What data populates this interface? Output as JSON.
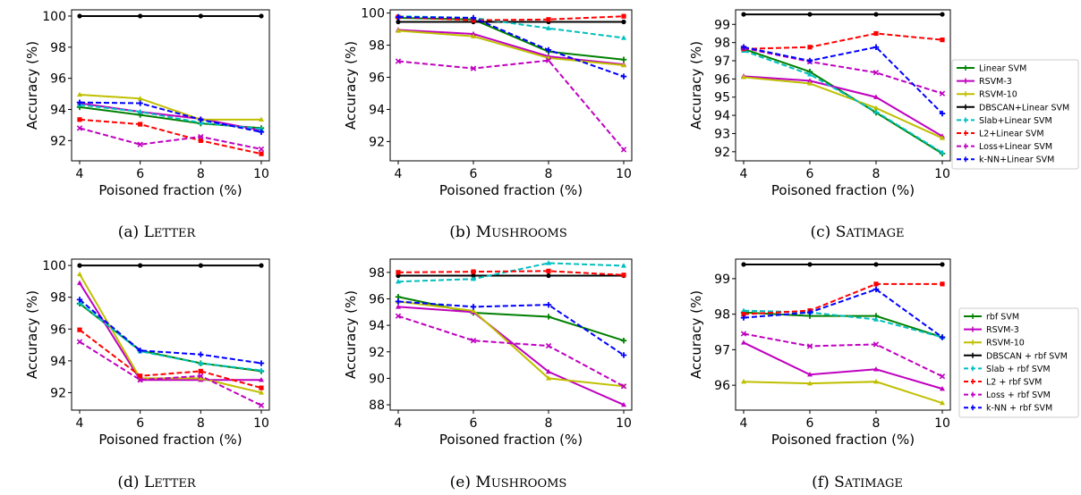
{
  "colors": {
    "green": "#008000",
    "magenta": "#bf00bf",
    "olive": "#bfbf00",
    "black": "#000000",
    "cyan": "#00bfbf",
    "red": "#ff0000",
    "pink": "#bf00bf",
    "blue": "#0000ff"
  },
  "legends": [
    {
      "entries": [
        {
          "label": "Linear SVM",
          "color": "#008000",
          "dash": false
        },
        {
          "label": "RSVM-3",
          "color": "#bf00bf",
          "dash": false
        },
        {
          "label": "RSVM-10",
          "color": "#bfbf00",
          "dash": false
        },
        {
          "label": "DBSCAN+Linear SVM",
          "color": "#000000",
          "dash": false
        },
        {
          "label": "Slab+Linear SVM",
          "color": "#00bfbf",
          "dash": true
        },
        {
          "label": "L2+Linear SVM",
          "color": "#ff0000",
          "dash": true
        },
        {
          "label": "Loss+Linear SVM",
          "color": "#bf00bf",
          "dash": true
        },
        {
          "label": "k-NN+Linear SVM",
          "color": "#0000ff",
          "dash": true
        }
      ]
    },
    {
      "entries": [
        {
          "label": "rbf SVM",
          "color": "#008000",
          "dash": false
        },
        {
          "label": "RSVM-3",
          "color": "#bf00bf",
          "dash": false
        },
        {
          "label": "RSVM-10",
          "color": "#bfbf00",
          "dash": false
        },
        {
          "label": "DBSCAN + rbf SVM",
          "color": "#000000",
          "dash": false
        },
        {
          "label": "Slab + rbf SVM",
          "color": "#00bfbf",
          "dash": true
        },
        {
          "label": "L2 + rbf SVM",
          "color": "#ff0000",
          "dash": true
        },
        {
          "label": "Loss + rbf SVM",
          "color": "#bf00bf",
          "dash": true
        },
        {
          "label": "k-NN + rbf SVM",
          "color": "#0000ff",
          "dash": true
        }
      ]
    }
  ],
  "chart_data": [
    {
      "type": "line",
      "caption_prefix": "(a) ",
      "caption_name": "Letter",
      "xlabel": "Poisoned fraction (%)",
      "ylabel": "Accuracy (%)",
      "x": [
        4,
        6,
        8,
        10
      ],
      "xticks": [
        "4",
        "6",
        "8",
        "10"
      ],
      "ylim": [
        90.7,
        100.4
      ],
      "yticks": [
        92,
        94,
        96,
        98,
        100
      ],
      "ytick_labels": [
        "92",
        "94",
        "96",
        "98",
        "100"
      ],
      "series": [
        {
          "color": "#008000",
          "dash": false,
          "marker": "plus",
          "values": [
            94.15,
            93.65,
            93.1,
            92.8
          ]
        },
        {
          "color": "#bf00bf",
          "dash": false,
          "marker": "tri",
          "values": [
            94.4,
            93.85,
            93.4,
            92.65
          ]
        },
        {
          "color": "#bfbf00",
          "dash": false,
          "marker": "tri",
          "values": [
            94.95,
            94.7,
            93.35,
            93.35
          ]
        },
        {
          "color": "#000000",
          "dash": false,
          "marker": "dot",
          "values": [
            100,
            100,
            100,
            100
          ]
        },
        {
          "color": "#00bfbf",
          "dash": true,
          "marker": "tri",
          "values": [
            94.3,
            93.85,
            93.15,
            92.75
          ]
        },
        {
          "color": "#ff0000",
          "dash": true,
          "marker": "sq",
          "values": [
            93.35,
            93.05,
            92.0,
            91.15
          ]
        },
        {
          "color": "#bf00bf",
          "dash": true,
          "marker": "x",
          "values": [
            92.8,
            91.75,
            92.25,
            91.45
          ]
        },
        {
          "color": "#0000ff",
          "dash": true,
          "marker": "plus",
          "values": [
            94.45,
            94.4,
            93.35,
            92.55
          ]
        }
      ]
    },
    {
      "type": "line",
      "caption_prefix": "(b) ",
      "caption_name": "Mushrooms",
      "xlabel": "Poisoned fraction (%)",
      "ylabel": "Accuracy (%)",
      "x": [
        4,
        6,
        8,
        10
      ],
      "xticks": [
        "4",
        "6",
        "8",
        "10"
      ],
      "ylim": [
        90.8,
        100.2
      ],
      "yticks": [
        92,
        94,
        96,
        98,
        100
      ],
      "ytick_labels": [
        "92",
        "94",
        "96",
        "98",
        "100"
      ],
      "series": [
        {
          "color": "#008000",
          "dash": false,
          "marker": "plus",
          "values": [
            99.7,
            99.6,
            97.6,
            97.1
          ]
        },
        {
          "color": "#bf00bf",
          "dash": false,
          "marker": "tri",
          "values": [
            98.95,
            98.7,
            97.3,
            96.8
          ]
        },
        {
          "color": "#bfbf00",
          "dash": false,
          "marker": "tri",
          "values": [
            98.9,
            98.55,
            97.2,
            96.75
          ]
        },
        {
          "color": "#000000",
          "dash": false,
          "marker": "dot",
          "values": [
            99.45,
            99.45,
            99.45,
            99.45
          ]
        },
        {
          "color": "#00bfbf",
          "dash": true,
          "marker": "tri",
          "values": [
            99.8,
            99.7,
            99.05,
            98.45
          ]
        },
        {
          "color": "#ff0000",
          "dash": true,
          "marker": "sq",
          "values": [
            99.75,
            99.55,
            99.6,
            99.8
          ]
        },
        {
          "color": "#bf00bf",
          "dash": true,
          "marker": "x",
          "values": [
            97.0,
            96.55,
            97.05,
            91.5
          ]
        },
        {
          "color": "#0000ff",
          "dash": true,
          "marker": "plus",
          "values": [
            99.75,
            99.7,
            97.7,
            96.05
          ]
        }
      ]
    },
    {
      "type": "line",
      "caption_prefix": "(c) ",
      "caption_name": "Satimage",
      "xlabel": "Poisoned fraction (%)",
      "ylabel": "Accuracy (%)",
      "x": [
        4,
        6,
        8,
        10
      ],
      "xticks": [
        "4",
        "6",
        "8",
        "10"
      ],
      "ylim": [
        91.5,
        99.8
      ],
      "yticks": [
        92,
        93,
        94,
        95,
        96,
        97,
        98,
        99
      ],
      "ytick_labels": [
        "92",
        "93",
        "94",
        "95",
        "96",
        "97",
        "98",
        "99"
      ],
      "series": [
        {
          "color": "#008000",
          "dash": false,
          "marker": "plus",
          "values": [
            97.65,
            96.4,
            94.15,
            91.9
          ]
        },
        {
          "color": "#bf00bf",
          "dash": false,
          "marker": "tri",
          "values": [
            96.15,
            95.9,
            95.0,
            92.85
          ]
        },
        {
          "color": "#bfbf00",
          "dash": false,
          "marker": "tri",
          "values": [
            96.1,
            95.75,
            94.4,
            92.75
          ]
        },
        {
          "color": "#000000",
          "dash": false,
          "marker": "dot",
          "values": [
            99.55,
            99.55,
            99.55,
            99.55
          ]
        },
        {
          "color": "#00bfbf",
          "dash": true,
          "marker": "tri",
          "values": [
            97.55,
            96.25,
            94.2,
            91.95
          ]
        },
        {
          "color": "#ff0000",
          "dash": true,
          "marker": "sq",
          "values": [
            97.65,
            97.75,
            98.5,
            98.15
          ]
        },
        {
          "color": "#bf00bf",
          "dash": true,
          "marker": "x",
          "values": [
            97.7,
            96.95,
            96.35,
            95.2
          ]
        },
        {
          "color": "#0000ff",
          "dash": true,
          "marker": "plus",
          "values": [
            97.75,
            97.0,
            97.75,
            94.1
          ]
        }
      ]
    },
    {
      "type": "line",
      "caption_prefix": "(d) ",
      "caption_name": "Letter",
      "xlabel": "Poisoned fraction (%)",
      "ylabel": "Accuracy (%)",
      "x": [
        4,
        6,
        8,
        10
      ],
      "xticks": [
        "4",
        "6",
        "8",
        "10"
      ],
      "ylim": [
        90.9,
        100.4
      ],
      "yticks": [
        92,
        94,
        96,
        98,
        100
      ],
      "ytick_labels": [
        "92",
        "94",
        "96",
        "98",
        "100"
      ],
      "series": [
        {
          "color": "#008000",
          "dash": false,
          "marker": "plus",
          "values": [
            97.6,
            94.65,
            93.85,
            93.35
          ]
        },
        {
          "color": "#bf00bf",
          "dash": false,
          "marker": "tri",
          "values": [
            98.9,
            92.8,
            92.8,
            92.8
          ]
        },
        {
          "color": "#bfbf00",
          "dash": false,
          "marker": "tri",
          "values": [
            99.45,
            92.9,
            92.9,
            92.0
          ]
        },
        {
          "color": "#000000",
          "dash": false,
          "marker": "dot",
          "values": [
            100,
            100,
            100,
            100
          ]
        },
        {
          "color": "#00bfbf",
          "dash": true,
          "marker": "tri",
          "values": [
            97.65,
            94.6,
            93.85,
            93.4
          ]
        },
        {
          "color": "#ff0000",
          "dash": true,
          "marker": "sq",
          "values": [
            95.95,
            93.05,
            93.35,
            92.3
          ]
        },
        {
          "color": "#bf00bf",
          "dash": true,
          "marker": "x",
          "values": [
            95.2,
            92.8,
            93.05,
            91.2
          ]
        },
        {
          "color": "#0000ff",
          "dash": true,
          "marker": "plus",
          "values": [
            97.85,
            94.65,
            94.4,
            93.85
          ]
        }
      ]
    },
    {
      "type": "line",
      "caption_prefix": "(e) ",
      "caption_name": "Mushrooms",
      "xlabel": "Poisoned fraction (%)",
      "ylabel": "Accuracy (%)",
      "x": [
        4,
        6,
        8,
        10
      ],
      "xticks": [
        "4",
        "6",
        "8",
        "10"
      ],
      "ylim": [
        87.6,
        99.0
      ],
      "yticks": [
        88,
        90,
        92,
        94,
        96,
        98
      ],
      "ytick_labels": [
        "88",
        "90",
        "92",
        "94",
        "96",
        "98"
      ],
      "series": [
        {
          "color": "#008000",
          "dash": false,
          "marker": "plus",
          "values": [
            96.15,
            94.95,
            94.65,
            92.85
          ]
        },
        {
          "color": "#bf00bf",
          "dash": false,
          "marker": "tri",
          "values": [
            95.4,
            95.0,
            90.5,
            88.0
          ]
        },
        {
          "color": "#bfbf00",
          "dash": false,
          "marker": "tri",
          "values": [
            95.8,
            95.1,
            90.0,
            89.4
          ]
        },
        {
          "color": "#000000",
          "dash": false,
          "marker": "dot",
          "values": [
            97.75,
            97.75,
            97.75,
            97.75
          ]
        },
        {
          "color": "#00bfbf",
          "dash": true,
          "marker": "tri",
          "values": [
            97.3,
            97.5,
            98.7,
            98.5
          ]
        },
        {
          "color": "#ff0000",
          "dash": true,
          "marker": "sq",
          "values": [
            98.0,
            98.05,
            98.1,
            97.8
          ]
        },
        {
          "color": "#bf00bf",
          "dash": true,
          "marker": "x",
          "values": [
            94.7,
            92.85,
            92.45,
            89.4
          ]
        },
        {
          "color": "#0000ff",
          "dash": true,
          "marker": "plus",
          "values": [
            95.8,
            95.4,
            95.55,
            91.75
          ]
        }
      ]
    },
    {
      "type": "line",
      "caption_prefix": "(f) ",
      "caption_name": "Satimage",
      "xlabel": "Poisoned fraction (%)",
      "ylabel": "Accuracy (%)",
      "x": [
        4,
        6,
        8,
        10
      ],
      "xticks": [
        "4",
        "6",
        "8",
        "10"
      ],
      "ylim": [
        95.3,
        99.55
      ],
      "yticks": [
        96,
        97,
        98,
        99
      ],
      "ytick_labels": [
        "96",
        "97",
        "98",
        "99"
      ],
      "series": [
        {
          "color": "#008000",
          "dash": false,
          "marker": "plus",
          "values": [
            98.05,
            97.95,
            97.95,
            97.35
          ]
        },
        {
          "color": "#bf00bf",
          "dash": false,
          "marker": "tri",
          "values": [
            97.2,
            96.3,
            96.45,
            95.9
          ]
        },
        {
          "color": "#bfbf00",
          "dash": false,
          "marker": "tri",
          "values": [
            96.1,
            96.05,
            96.1,
            95.5
          ]
        },
        {
          "color": "#000000",
          "dash": false,
          "marker": "dot",
          "values": [
            99.4,
            99.4,
            99.4,
            99.4
          ]
        },
        {
          "color": "#00bfbf",
          "dash": true,
          "marker": "tri",
          "values": [
            98.1,
            98.05,
            97.85,
            97.35
          ]
        },
        {
          "color": "#ff0000",
          "dash": true,
          "marker": "sq",
          "values": [
            98.0,
            98.1,
            98.85,
            98.85
          ]
        },
        {
          "color": "#bf00bf",
          "dash": true,
          "marker": "x",
          "values": [
            97.45,
            97.1,
            97.15,
            96.25
          ]
        },
        {
          "color": "#0000ff",
          "dash": true,
          "marker": "plus",
          "values": [
            97.9,
            98.05,
            98.7,
            97.35
          ]
        }
      ]
    }
  ]
}
